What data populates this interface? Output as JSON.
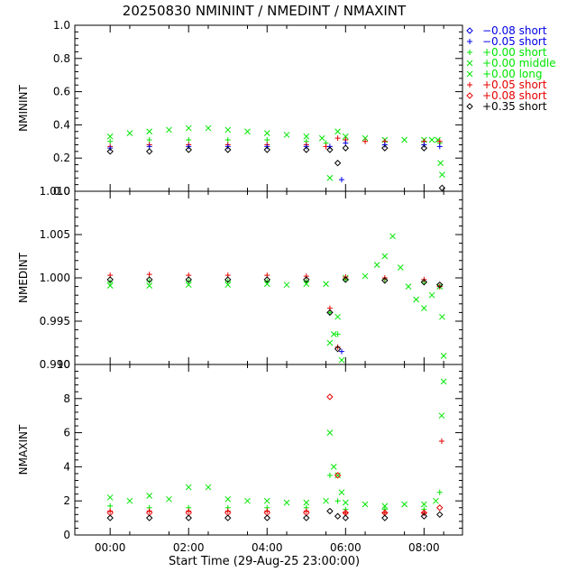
{
  "chart_data": {
    "type": "scatter",
    "title": "20250830  NMININT  /  NMEDINT  /  NMAXINT",
    "xlabel": "Start Time (29-Aug-25 23:00:00)",
    "x_tick_labels": [
      "00:00",
      "02:00",
      "04:00",
      "06:00",
      "08:00"
    ],
    "x_tick_hours": [
      1,
      3,
      5,
      7,
      9
    ],
    "xlim_hours": [
      0.1,
      9.98
    ],
    "colors": {
      "black": "#000000",
      "blue": "#0000e6",
      "green": "#00e600",
      "red": "#e60000"
    },
    "legend": [
      {
        "label": "−0.08 short",
        "marker": "diamond",
        "color": "blue"
      },
      {
        "label": "−0.05 short",
        "marker": "plus",
        "color": "blue"
      },
      {
        "label": "+0.00 short",
        "marker": "plus",
        "color": "green"
      },
      {
        "label": "+0.00 middle",
        "marker": "x",
        "color": "green"
      },
      {
        "label": "+0.00 long",
        "marker": "x",
        "color": "green"
      },
      {
        "label": "+0.05 short",
        "marker": "plus",
        "color": "red"
      },
      {
        "label": "+0.08 short",
        "marker": "diamond",
        "color": "red"
      },
      {
        "label": "+0.35 short",
        "marker": "diamond",
        "color": "black"
      }
    ],
    "panels": [
      {
        "ylabel": "NMININT",
        "ylim": [
          0,
          1
        ],
        "y_ticks": [
          0,
          0.2,
          0.4,
          0.6,
          0.8,
          1.0
        ],
        "y_tick_labels": [
          "0.0",
          "0.2",
          "0.4",
          "0.6",
          "0.8",
          "1.0"
        ],
        "series": [
          {
            "name": "+0.00 long",
            "color": "green",
            "marker": "x",
            "x": [
              1.0,
              1.5,
              2.0,
              2.5,
              3.0,
              3.5,
              4.0,
              4.5,
              5.0,
              5.5,
              6.0,
              6.4,
              6.6,
              6.8,
              7.0,
              7.5,
              8.0,
              8.5,
              9.0,
              9.2,
              9.35,
              9.42,
              9.46
            ],
            "y": [
              0.33,
              0.35,
              0.36,
              0.37,
              0.38,
              0.38,
              0.37,
              0.36,
              0.35,
              0.34,
              0.33,
              0.32,
              0.08,
              0.36,
              0.33,
              0.32,
              0.31,
              0.31,
              0.31,
              0.31,
              0.31,
              0.17,
              0.1
            ]
          },
          {
            "name": "+0.00 short",
            "color": "green",
            "marker": "plus",
            "x": [
              1.0,
              2.0,
              3.0,
              4.0,
              5.0,
              6.0,
              6.5,
              7.0,
              8.0,
              9.0,
              9.4
            ],
            "y": [
              0.3,
              0.31,
              0.31,
              0.31,
              0.31,
              0.3,
              0.29,
              0.31,
              0.3,
              0.3,
              0.29
            ]
          },
          {
            "name": "+0.05 short",
            "color": "red",
            "marker": "plus",
            "x": [
              1.0,
              2.0,
              3.0,
              4.0,
              5.0,
              6.0,
              6.5,
              6.8,
              7.0,
              7.5,
              8.0,
              9.0,
              9.4
            ],
            "y": [
              0.27,
              0.28,
              0.28,
              0.28,
              0.28,
              0.28,
              0.27,
              0.32,
              0.31,
              0.3,
              0.3,
              0.3,
              0.3
            ]
          },
          {
            "name": "−0.05 short",
            "color": "blue",
            "marker": "plus",
            "x": [
              1.0,
              2.0,
              3.0,
              4.0,
              5.0,
              6.0,
              6.6,
              6.9,
              7.0,
              8.0,
              9.0,
              9.4
            ],
            "y": [
              0.26,
              0.27,
              0.27,
              0.27,
              0.27,
              0.27,
              0.27,
              0.07,
              0.29,
              0.28,
              0.28,
              0.27
            ]
          },
          {
            "name": "+0.35 short",
            "color": "black",
            "marker": "diamond",
            "x": [
              1.0,
              2.0,
              3.0,
              4.0,
              5.0,
              6.0,
              6.6,
              6.8,
              7.0,
              8.0,
              9.0,
              9.46
            ],
            "y": [
              0.24,
              0.24,
              0.25,
              0.25,
              0.25,
              0.25,
              0.25,
              0.17,
              0.26,
              0.26,
              0.26,
              0.02
            ]
          }
        ]
      },
      {
        "ylabel": "NMEDINT",
        "ylim": [
          0.99,
          1.01
        ],
        "y_ticks": [
          0.99,
          0.995,
          1.0,
          1.005,
          1.01
        ],
        "y_tick_labels": [
          "0.990",
          "0.995",
          "1.000",
          "1.005",
          "1.010"
        ],
        "series": [
          {
            "name": "+0.00 middle",
            "color": "green",
            "marker": "x",
            "x": [
              1.0,
              2.0,
              3.0,
              4.0,
              5.0,
              5.5,
              6.0,
              6.5,
              6.6,
              6.7,
              6.8,
              6.9,
              7.0,
              7.5,
              7.8,
              8.0,
              8.2,
              8.4,
              8.6,
              8.8,
              9.0,
              9.2,
              9.4,
              9.46,
              9.5
            ],
            "y": [
              0.9991,
              0.9991,
              0.9992,
              0.9992,
              0.9993,
              0.9992,
              0.9993,
              0.9993,
              0.9925,
              0.9935,
              0.9955,
              0.9905,
              1.0,
              1.0002,
              1.0015,
              1.0025,
              1.0048,
              1.0012,
              0.999,
              0.9975,
              0.9965,
              0.998,
              0.999,
              0.9955,
              0.991
            ]
          },
          {
            "name": "+0.00 short",
            "color": "green",
            "marker": "plus",
            "x": [
              1.0,
              2.0,
              3.0,
              4.0,
              5.0,
              6.0,
              6.6,
              6.8,
              7.0,
              8.0,
              9.0,
              9.4
            ],
            "y": [
              0.9995,
              0.9996,
              0.9996,
              0.9996,
              0.9996,
              0.9996,
              0.996,
              0.9935,
              0.9998,
              0.9998,
              0.9995,
              0.999
            ]
          },
          {
            "name": "+0.05 short",
            "color": "red",
            "marker": "plus",
            "x": [
              1.0,
              2.0,
              3.0,
              4.0,
              5.0,
              6.0,
              6.6,
              6.8,
              7.0,
              8.0,
              9.0,
              9.4
            ],
            "y": [
              1.0003,
              1.0004,
              1.0003,
              1.0003,
              1.0003,
              1.0002,
              0.9965,
              0.992,
              1.0001,
              1.0,
              0.9998,
              0.999
            ]
          },
          {
            "name": "+0.35 short",
            "color": "black",
            "marker": "diamond",
            "x": [
              1.0,
              2.0,
              3.0,
              4.0,
              5.0,
              6.0,
              6.6,
              6.8,
              7.0,
              8.0,
              9.0,
              9.4
            ],
            "y": [
              0.9998,
              0.9998,
              0.9998,
              0.9998,
              0.9998,
              0.9998,
              0.996,
              0.9918,
              0.9998,
              0.9997,
              0.9995,
              0.9992
            ]
          },
          {
            "name": "−0.05 short",
            "color": "blue",
            "marker": "plus",
            "x": [
              6.9
            ],
            "y": [
              0.9915
            ]
          }
        ]
      },
      {
        "ylabel": "NMAXINT",
        "ylim": [
          0,
          10
        ],
        "y_ticks": [
          0,
          2,
          4,
          6,
          8,
          10
        ],
        "y_tick_labels": [
          "0",
          "2",
          "4",
          "6",
          "8",
          "10"
        ],
        "series": [
          {
            "name": "+0.00 middle",
            "color": "green",
            "marker": "x",
            "x": [
              1.0,
              1.5,
              2.0,
              2.5,
              3.0,
              3.5,
              4.0,
              4.5,
              5.0,
              5.5,
              6.0,
              6.5,
              6.6,
              6.7,
              6.8,
              6.9,
              7.0,
              7.5,
              8.0,
              8.5,
              9.0,
              9.3,
              9.45,
              9.5
            ],
            "y": [
              2.2,
              2.0,
              2.3,
              2.1,
              2.8,
              2.8,
              2.1,
              2.0,
              2.0,
              1.9,
              1.9,
              2.0,
              6.0,
              4.0,
              3.5,
              2.5,
              1.9,
              1.8,
              1.7,
              1.8,
              1.8,
              2.0,
              7.0,
              9.0
            ]
          },
          {
            "name": "+0.00 short",
            "color": "green",
            "marker": "plus",
            "x": [
              1.0,
              2.0,
              3.0,
              4.0,
              5.0,
              6.0,
              6.6,
              6.8,
              7.0,
              8.0,
              9.0,
              9.4
            ],
            "y": [
              1.7,
              1.6,
              1.6,
              1.6,
              1.6,
              1.6,
              3.5,
              2.0,
              1.5,
              1.5,
              1.5,
              2.5
            ]
          },
          {
            "name": "+0.05 short",
            "color": "red",
            "marker": "plus",
            "x": [
              1.0,
              2.0,
              3.0,
              4.0,
              5.0,
              6.0,
              7.0,
              8.0,
              9.0,
              9.45
            ],
            "y": [
              1.4,
              1.4,
              1.4,
              1.4,
              1.4,
              1.4,
              1.3,
              1.3,
              1.3,
              5.5
            ]
          },
          {
            "name": "+0.08 short",
            "color": "red",
            "marker": "diamond",
            "x": [
              1.0,
              2.0,
              3.0,
              4.0,
              5.0,
              6.0,
              6.6,
              6.8,
              7.0,
              8.0,
              9.0,
              9.4
            ],
            "y": [
              1.3,
              1.3,
              1.3,
              1.3,
              1.3,
              1.3,
              8.1,
              3.5,
              1.3,
              1.3,
              1.3,
              1.6
            ]
          },
          {
            "name": "+0.35 short",
            "color": "black",
            "marker": "diamond",
            "x": [
              1.0,
              2.0,
              3.0,
              4.0,
              5.0,
              6.0,
              6.6,
              6.8,
              7.0,
              8.0,
              9.0,
              9.4
            ],
            "y": [
              1.0,
              1.0,
              1.0,
              1.0,
              1.0,
              1.0,
              1.4,
              1.1,
              1.0,
              1.0,
              1.1,
              1.2
            ]
          }
        ]
      }
    ]
  }
}
